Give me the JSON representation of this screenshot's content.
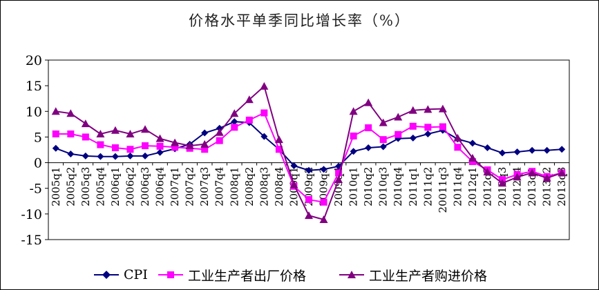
{
  "chart_data": {
    "type": "line",
    "title": "价格水平单季同比增长率（%）",
    "xlabel": "",
    "ylabel": "",
    "ylim": [
      -15,
      20
    ],
    "yticks": [
      "20",
      "15",
      "10",
      "5",
      "0",
      "-5",
      "-10",
      "-15"
    ],
    "grid": false,
    "legend": "bottom",
    "categories": [
      "2005q1",
      "2005q2",
      "2005q3",
      "2005q4",
      "2006q1",
      "2006q2",
      "2006q3",
      "2006q4",
      "2007q1",
      "2007q2",
      "2007q3",
      "2007q4",
      "2008q1",
      "2008q2",
      "2008q3",
      "2008q4",
      "2009q1",
      "2009q2",
      "2009q3",
      "2009q4",
      "2010q1",
      "2010q2",
      "2010q3",
      "2010q4",
      "2011q1",
      "2011q2",
      "20011q3",
      "2011q4",
      "2012q1",
      "2012q2",
      "2012q3",
      "2012q4",
      "2013q1",
      "2013q2",
      "2013q3"
    ],
    "series": [
      {
        "name": "CPI",
        "color": "#000080",
        "marker": "diamond",
        "values": [
          2.8,
          1.7,
          1.3,
          1.2,
          1.2,
          1.3,
          1.3,
          2.0,
          2.7,
          3.6,
          5.8,
          6.7,
          8.0,
          7.8,
          5.1,
          2.6,
          -0.6,
          -1.5,
          -1.3,
          -0.7,
          2.2,
          2.9,
          3.1,
          4.7,
          4.8,
          5.6,
          6.3,
          4.6,
          3.8,
          2.9,
          1.9,
          2.1,
          2.4,
          2.4,
          2.6
        ]
      },
      {
        "name": "工业生产者出厂价格",
        "color": "#ff00ff",
        "marker": "square",
        "values": [
          5.6,
          5.6,
          5.0,
          3.5,
          2.9,
          2.6,
          3.3,
          3.2,
          3.0,
          2.8,
          2.6,
          4.3,
          6.9,
          8.3,
          9.7,
          2.6,
          -4.6,
          -7.2,
          -7.7,
          -2.0,
          5.2,
          6.8,
          4.5,
          5.5,
          7.1,
          6.9,
          7.0,
          3.0,
          0.2,
          -1.4,
          -3.3,
          -2.3,
          -1.7,
          -2.7,
          -2.0
        ]
      },
      {
        "name": "工业生产者购进价格",
        "color": "#800080",
        "marker": "triangle",
        "values": [
          10.0,
          9.6,
          7.6,
          5.6,
          6.3,
          5.6,
          6.5,
          4.7,
          3.9,
          3.3,
          3.6,
          5.9,
          9.6,
          12.3,
          14.9,
          4.5,
          -4.3,
          -10.3,
          -11.1,
          -3.3,
          10.0,
          11.7,
          7.8,
          8.9,
          10.2,
          10.4,
          10.5,
          4.8,
          0.9,
          -1.8,
          -4.0,
          -2.8,
          -2.0,
          -3.0,
          -2.0
        ]
      }
    ]
  }
}
